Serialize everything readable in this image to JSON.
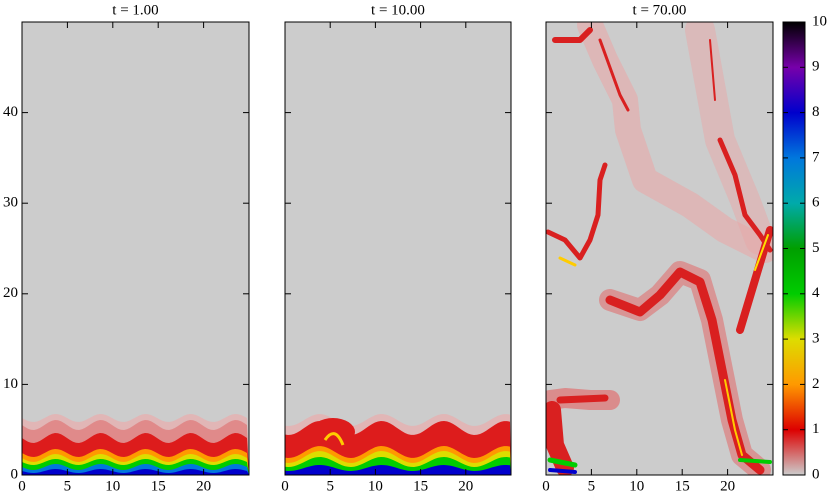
{
  "chart_data": [
    {
      "type": "heatmap",
      "title": "t = 1.00",
      "xlim": [
        0,
        25
      ],
      "ylim": [
        0,
        50
      ],
      "xticks": [
        0,
        5,
        10,
        15,
        20
      ],
      "yticks": [
        0,
        10,
        20,
        30,
        40
      ],
      "show_ytick_labels": true
    },
    {
      "type": "heatmap",
      "title": "t = 10.00",
      "xlim": [
        0,
        25
      ],
      "ylim": [
        0,
        50
      ],
      "xticks": [
        0,
        5,
        10,
        15,
        20
      ],
      "yticks": [
        0,
        10,
        20,
        30,
        40
      ],
      "show_ytick_labels": false
    },
    {
      "type": "heatmap",
      "title": "t = 70.00",
      "xlim": [
        0,
        25
      ],
      "ylim": [
        0,
        50
      ],
      "xticks": [
        0,
        5,
        10,
        15,
        20
      ],
      "yticks": [
        0,
        10,
        20,
        30,
        40
      ],
      "show_ytick_labels": false
    },
    {
      "type": "colorbar",
      "ylim": [
        0,
        10
      ],
      "yticks": [
        0,
        1,
        2,
        3,
        4,
        5,
        6,
        7,
        8,
        9,
        10
      ],
      "colors": [
        "#cccccc",
        "#dd0000",
        "#ff9900",
        "#dddd00",
        "#00cc00",
        "#009f00",
        "#00aaaa",
        "#0077dd",
        "#0000cc",
        "#7700aa",
        "#000000"
      ]
    }
  ]
}
